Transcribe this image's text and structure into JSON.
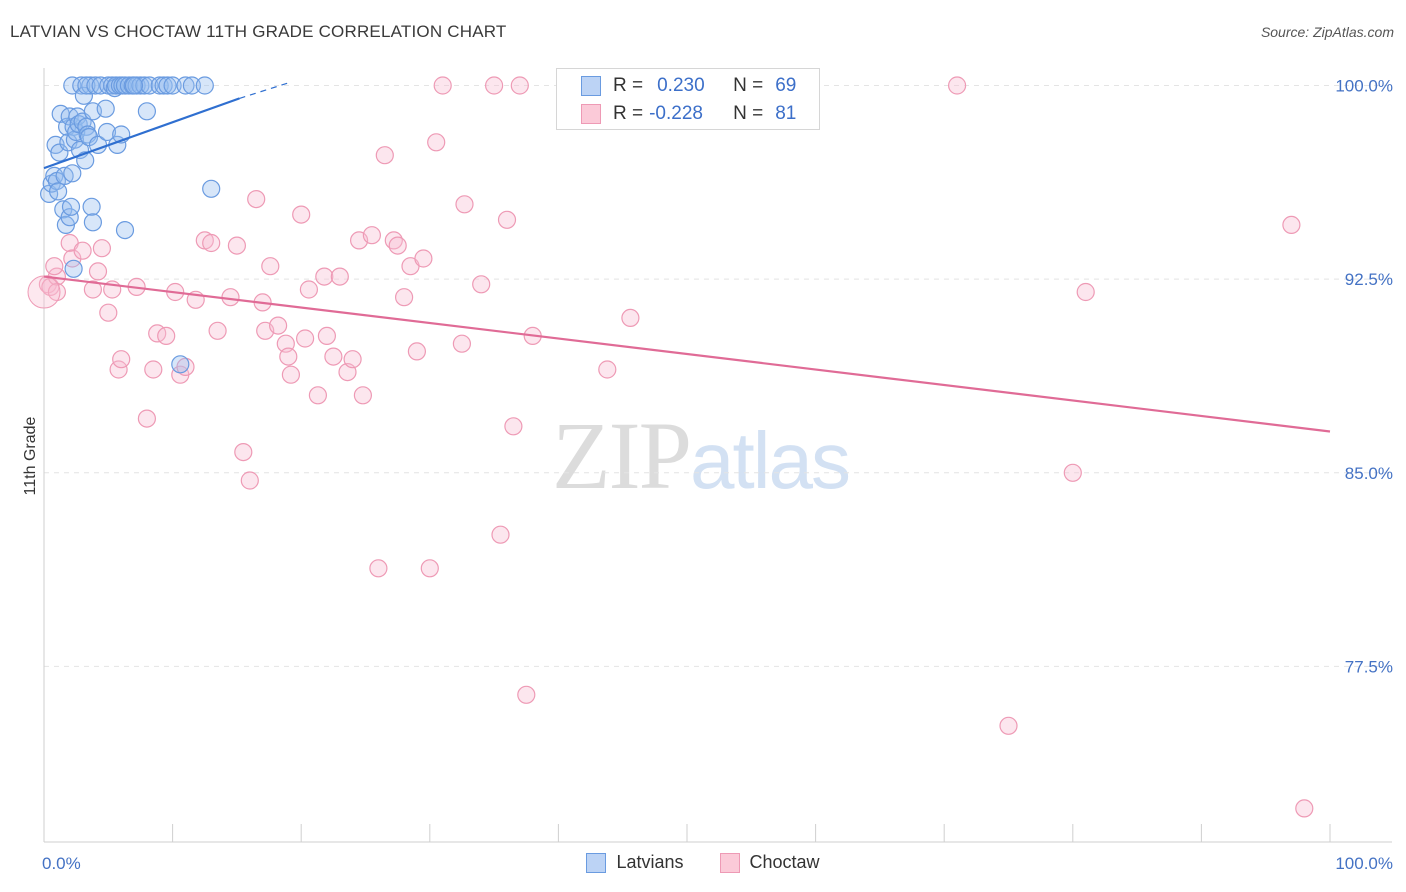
{
  "header": {
    "title": "LATVIAN VS CHOCTAW 11TH GRADE CORRELATION CHART",
    "source": "Source: ZipAtlas.com"
  },
  "watermark": {
    "part1": "ZIP",
    "part2": "atlas"
  },
  "legend": {
    "r_label": "R =",
    "n_label": "N =",
    "rows": [
      {
        "name": "Latvians",
        "r": "0.230",
        "n": "69",
        "fill": "#bcd3f5",
        "stroke": "#6a9be0"
      },
      {
        "name": "Choctaw",
        "r": "-0.228",
        "n": "81",
        "fill": "#fbcad8",
        "stroke": "#ee9ab5"
      }
    ]
  },
  "chart_data": {
    "type": "scatter",
    "title": "LATVIAN VS CHOCTAW 11TH GRADE CORRELATION CHART",
    "xlabel": "",
    "ylabel": "11th Grade",
    "xlim": [
      0,
      100
    ],
    "ylim": [
      70.7,
      100.6
    ],
    "x_tick_labels": [
      "0.0%",
      "100.0%"
    ],
    "y_ticks": [
      77.5,
      85.0,
      92.5,
      100.0
    ],
    "y_tick_labels": [
      "77.5%",
      "85.0%",
      "92.5%",
      "100.0%"
    ],
    "grid": true,
    "legend_position": "top-center",
    "colors": {
      "Latvians": "#6a9be0",
      "Latvians_line": "#2f6fd0",
      "Choctaw": "#ee9ab5",
      "Choctaw_line": "#e06b96"
    },
    "series": [
      {
        "name": "Latvians",
        "r": 0.23,
        "n": 69,
        "trend": {
          "x0": 0,
          "y0": 96.8,
          "x1": 15.2,
          "y1": 99.5,
          "dash_x1": 19,
          "dash_y1": 100.1
        },
        "points": [
          [
            0.4,
            95.8
          ],
          [
            0.6,
            96.2
          ],
          [
            0.8,
            96.5
          ],
          [
            0.9,
            97.7
          ],
          [
            1.0,
            96.3
          ],
          [
            1.1,
            95.9
          ],
          [
            1.2,
            97.4
          ],
          [
            1.3,
            98.9
          ],
          [
            1.5,
            95.2
          ],
          [
            1.6,
            96.5
          ],
          [
            1.7,
            94.6
          ],
          [
            1.8,
            98.4
          ],
          [
            1.9,
            97.8
          ],
          [
            2.0,
            94.9
          ],
          [
            2.1,
            95.3
          ],
          [
            2.2,
            96.6
          ],
          [
            2.0,
            98.8
          ],
          [
            2.2,
            100.0
          ],
          [
            2.3,
            98.4
          ],
          [
            2.4,
            97.9
          ],
          [
            2.5,
            98.2
          ],
          [
            2.6,
            98.8
          ],
          [
            2.7,
            98.5
          ],
          [
            2.8,
            97.5
          ],
          [
            2.9,
            100.0
          ],
          [
            3.0,
            98.6
          ],
          [
            3.1,
            99.6
          ],
          [
            3.2,
            97.1
          ],
          [
            3.3,
            98.4
          ],
          [
            3.4,
            98.1
          ],
          [
            3.5,
            98.0
          ],
          [
            3.6,
            100.0
          ],
          [
            3.3,
            100.0
          ],
          [
            3.8,
            99.0
          ],
          [
            4.0,
            100.0
          ],
          [
            4.2,
            97.7
          ],
          [
            4.4,
            100.0
          ],
          [
            3.7,
            95.3
          ],
          [
            3.8,
            94.7
          ],
          [
            4.8,
            99.1
          ],
          [
            4.9,
            98.2
          ],
          [
            5.0,
            100.0
          ],
          [
            5.3,
            100.0
          ],
          [
            5.5,
            99.9
          ],
          [
            5.6,
            100.0
          ],
          [
            5.7,
            97.7
          ],
          [
            5.9,
            100.0
          ],
          [
            6.1,
            100.0
          ],
          [
            6.3,
            100.0
          ],
          [
            6.6,
            100.0
          ],
          [
            6.9,
            100.0
          ],
          [
            7.2,
            100.0
          ],
          [
            7.5,
            100.0
          ],
          [
            7.8,
            100.0
          ],
          [
            6.0,
            98.1
          ],
          [
            6.3,
            94.4
          ],
          [
            8.0,
            99.0
          ],
          [
            8.2,
            100.0
          ],
          [
            9.0,
            100.0
          ],
          [
            9.3,
            100.0
          ],
          [
            9.6,
            100.0
          ],
          [
            10.0,
            100.0
          ],
          [
            7.0,
            100.0
          ],
          [
            11.0,
            100.0
          ],
          [
            11.5,
            100.0
          ],
          [
            12.5,
            100.0
          ],
          [
            13.0,
            96.0
          ],
          [
            10.6,
            89.2
          ],
          [
            2.3,
            92.9
          ]
        ]
      },
      {
        "name": "Choctaw",
        "r": -0.228,
        "n": 81,
        "trend": {
          "x0": 0,
          "y0": 92.6,
          "x1": 100,
          "y1": 86.6
        },
        "points": [
          [
            0.3,
            92.3
          ],
          [
            0.5,
            92.2
          ],
          [
            1.0,
            92.6
          ],
          [
            2.0,
            93.9
          ],
          [
            2.2,
            93.3
          ],
          [
            3.0,
            93.6
          ],
          [
            3.8,
            92.1
          ],
          [
            4.2,
            92.8
          ],
          [
            4.5,
            93.7
          ],
          [
            5.0,
            91.2
          ],
          [
            5.3,
            92.1
          ],
          [
            5.8,
            89.0
          ],
          [
            6.0,
            89.4
          ],
          [
            7.2,
            92.2
          ],
          [
            8.0,
            87.1
          ],
          [
            8.5,
            89.0
          ],
          [
            8.8,
            90.4
          ],
          [
            9.5,
            90.3
          ],
          [
            10.2,
            92.0
          ],
          [
            10.6,
            88.8
          ],
          [
            11.0,
            89.1
          ],
          [
            11.8,
            91.7
          ],
          [
            12.5,
            94.0
          ],
          [
            13.0,
            93.9
          ],
          [
            13.5,
            90.5
          ],
          [
            14.5,
            91.8
          ],
          [
            15.0,
            93.8
          ],
          [
            15.5,
            85.8
          ],
          [
            16.0,
            84.7
          ],
          [
            16.5,
            95.6
          ],
          [
            17.0,
            91.6
          ],
          [
            17.2,
            90.5
          ],
          [
            17.6,
            93.0
          ],
          [
            18.2,
            90.7
          ],
          [
            18.8,
            90.0
          ],
          [
            19.0,
            89.5
          ],
          [
            19.2,
            88.8
          ],
          [
            20.0,
            95.0
          ],
          [
            20.3,
            90.2
          ],
          [
            20.6,
            92.1
          ],
          [
            21.3,
            88.0
          ],
          [
            21.8,
            92.6
          ],
          [
            22.0,
            90.3
          ],
          [
            22.5,
            89.5
          ],
          [
            23.0,
            92.6
          ],
          [
            23.6,
            88.9
          ],
          [
            24.0,
            89.4
          ],
          [
            24.5,
            94.0
          ],
          [
            24.8,
            88.0
          ],
          [
            25.5,
            94.2
          ],
          [
            26.0,
            81.3
          ],
          [
            26.5,
            97.3
          ],
          [
            27.2,
            94.0
          ],
          [
            27.5,
            93.8
          ],
          [
            28.0,
            91.8
          ],
          [
            28.5,
            93.0
          ],
          [
            29.0,
            89.7
          ],
          [
            29.5,
            93.3
          ],
          [
            30.0,
            81.3
          ],
          [
            30.5,
            97.8
          ],
          [
            31.0,
            100.0
          ],
          [
            32.5,
            90.0
          ],
          [
            32.7,
            95.4
          ],
          [
            34.0,
            92.3
          ],
          [
            35.0,
            100.0
          ],
          [
            35.5,
            82.6
          ],
          [
            36.0,
            94.8
          ],
          [
            36.5,
            86.8
          ],
          [
            37.0,
            100.0
          ],
          [
            37.5,
            76.4
          ],
          [
            38.0,
            90.3
          ],
          [
            43.8,
            89.0
          ],
          [
            45.6,
            91.0
          ],
          [
            71.0,
            100.0
          ],
          [
            75.0,
            75.2
          ],
          [
            80.0,
            85.0
          ],
          [
            81.0,
            92.0
          ],
          [
            97.0,
            94.6
          ],
          [
            98.0,
            72.0
          ],
          [
            1.0,
            92.0
          ],
          [
            0.8,
            93.0
          ]
        ]
      }
    ]
  }
}
